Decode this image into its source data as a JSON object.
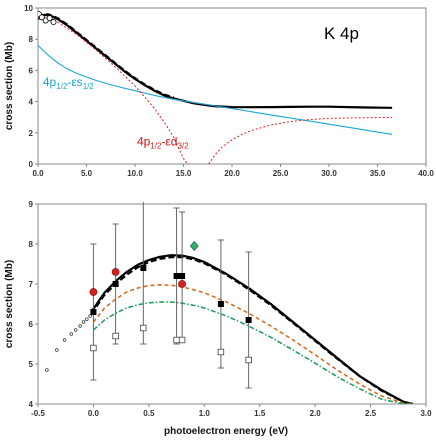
{
  "chart_data": [
    {
      "type": "line",
      "title": "K 4p",
      "xlabel": "",
      "ylabel": "cross section  (Mb)",
      "xlim": [
        0,
        40
      ],
      "ylim": [
        0,
        10
      ],
      "xticks": [
        "0.0",
        "5.0",
        "10.0",
        "15.0",
        "20.0",
        "25.0",
        "30.0",
        "35.0",
        "40.0"
      ],
      "yticks": [
        {
          "value": 10,
          "label": "10"
        },
        {
          "value": 8,
          "label": "8"
        },
        {
          "value": 6,
          "label": "6"
        },
        {
          "value": 4,
          "label": "4"
        },
        {
          "value": 2,
          "label": "2"
        },
        {
          "value": 0,
          "label": "0"
        }
      ],
      "annotations": [
        {
          "main": "4p",
          "sub1": "1/2",
          "mid": "-εs",
          "sub2": "1/2",
          "color": "#1aa6d6",
          "x": 0.5,
          "y": 5.0
        },
        {
          "main": "4p",
          "sub1": "1/2",
          "mid": "-εd",
          "sub2": "3/2",
          "color": "#d01818",
          "x": 10.2,
          "y": 1.2
        }
      ],
      "series": [
        {
          "style": "solid-black",
          "x": [
            0,
            0.5,
            1,
            1.5,
            2,
            3,
            4,
            5,
            6,
            7,
            8,
            9,
            10,
            11,
            12,
            13,
            14,
            15,
            16,
            17,
            18,
            19,
            20,
            22,
            24,
            26,
            28,
            30,
            32,
            34,
            36.5
          ],
          "y": [
            9.5,
            9.55,
            9.55,
            9.45,
            9.3,
            8.9,
            8.4,
            7.9,
            7.4,
            6.9,
            6.4,
            5.9,
            5.45,
            5.05,
            4.7,
            4.4,
            4.2,
            4.05,
            3.9,
            3.8,
            3.72,
            3.68,
            3.65,
            3.64,
            3.65,
            3.66,
            3.67,
            3.67,
            3.65,
            3.62,
            3.6
          ]
        },
        {
          "style": "dashed-black",
          "x": [
            0,
            0.5,
            1,
            1.5,
            2,
            3,
            4,
            5,
            6,
            7,
            8,
            9,
            10,
            11,
            12,
            13,
            14
          ],
          "y": [
            9.3,
            9.5,
            9.6,
            9.5,
            9.35,
            8.95,
            8.45,
            7.95,
            7.45,
            6.95,
            6.45,
            5.95,
            5.5,
            5.1,
            4.75,
            4.45,
            4.25
          ]
        },
        {
          "style": "blue",
          "x": [
            0,
            1,
            2,
            3,
            4,
            6,
            8,
            10,
            12,
            14,
            16,
            18,
            20,
            24,
            28,
            32,
            36.5
          ],
          "y": [
            7.6,
            7.0,
            6.5,
            6.1,
            5.8,
            5.35,
            5.0,
            4.7,
            4.4,
            4.15,
            3.95,
            3.75,
            3.55,
            3.15,
            2.75,
            2.35,
            1.9
          ]
        },
        {
          "style": "red-dotted",
          "x": [
            0,
            2,
            4,
            6,
            8,
            10,
            11,
            12,
            13,
            14,
            14.5,
            15,
            15.4
          ],
          "y": [
            9.4,
            9.1,
            8.3,
            7.3,
            6.2,
            5.0,
            4.3,
            3.55,
            2.7,
            1.7,
            1.0,
            0.35,
            0
          ]
        },
        {
          "style": "red-dotted",
          "x": [
            17.6,
            18.2,
            19,
            20,
            21,
            22,
            24,
            26,
            28,
            30,
            32,
            34,
            36.5
          ],
          "y": [
            0,
            0.55,
            1.1,
            1.55,
            1.9,
            2.15,
            2.5,
            2.72,
            2.85,
            2.92,
            2.95,
            2.97,
            2.98
          ]
        }
      ],
      "points": [
        {
          "x": 0.1,
          "y": 9.6
        },
        {
          "x": 0.4,
          "y": 9.4
        },
        {
          "x": 0.8,
          "y": 9.2
        },
        {
          "x": 1.2,
          "y": 9.35
        },
        {
          "x": 1.6,
          "y": 9.1
        }
      ]
    },
    {
      "type": "line",
      "title": "",
      "xlabel": "photoelectron energy (eV)",
      "ylabel": "cross section  (Mb)",
      "xlim": [
        -0.5,
        3.0
      ],
      "ylim": [
        4,
        9
      ],
      "xticks": [
        "-0.5",
        "0.0",
        "0.5",
        "1.0",
        "1.5",
        "2.0",
        "2.5",
        "3.0"
      ],
      "yticks": [
        {
          "value": 4,
          "label": "4"
        },
        {
          "value": 5,
          "label": "5"
        },
        {
          "value": 6,
          "label": "6"
        },
        {
          "value": 7,
          "label": "7"
        },
        {
          "value": 8,
          "label": "8"
        },
        {
          "value": 9,
          "label": "9"
        }
      ],
      "series": [
        {
          "style": "solid-black",
          "x": [
            -0.02,
            0.1,
            0.2,
            0.3,
            0.4,
            0.5,
            0.6,
            0.7,
            0.8,
            0.9,
            1.0,
            1.2,
            1.4,
            1.6,
            1.8,
            2.0,
            2.2,
            2.4,
            2.6,
            2.8,
            2.88
          ],
          "y": [
            6.3,
            6.78,
            7.07,
            7.3,
            7.48,
            7.6,
            7.68,
            7.72,
            7.71,
            7.65,
            7.55,
            7.25,
            6.9,
            6.5,
            6.05,
            5.6,
            5.15,
            4.7,
            4.35,
            4.05,
            4.0
          ]
        },
        {
          "style": "dashed-black",
          "x": [
            -0.02,
            0.1,
            0.2,
            0.3,
            0.4,
            0.5,
            0.6,
            0.7,
            0.8,
            0.9,
            1.0,
            1.2,
            1.4,
            1.6,
            1.8,
            2.0,
            2.2,
            2.4,
            2.6,
            2.8,
            2.88
          ],
          "y": [
            6.25,
            6.73,
            7.0,
            7.23,
            7.42,
            7.55,
            7.63,
            7.67,
            7.67,
            7.62,
            7.52,
            7.23,
            6.87,
            6.47,
            6.03,
            5.58,
            5.13,
            4.7,
            4.33,
            4.05,
            4.0
          ]
        },
        {
          "style": "orange-dashed",
          "x": [
            0.0,
            0.1,
            0.2,
            0.3,
            0.4,
            0.5,
            0.6,
            0.7,
            0.8,
            0.9,
            1.0,
            1.2,
            1.4,
            1.6,
            1.8,
            2.0,
            2.2,
            2.4,
            2.6,
            2.8,
            2.88
          ],
          "y": [
            6.05,
            6.4,
            6.62,
            6.8,
            6.9,
            6.96,
            6.98,
            6.97,
            6.93,
            6.86,
            6.78,
            6.55,
            6.27,
            5.95,
            5.6,
            5.23,
            4.85,
            4.5,
            4.2,
            4.02,
            4.0
          ]
        },
        {
          "style": "green-dashdot",
          "x": [
            0.0,
            0.1,
            0.2,
            0.3,
            0.4,
            0.5,
            0.6,
            0.7,
            0.8,
            0.9,
            1.0,
            1.2,
            1.4,
            1.6,
            1.8,
            2.0,
            2.2,
            2.4,
            2.6,
            2.8,
            2.88
          ],
          "y": [
            5.85,
            6.1,
            6.27,
            6.4,
            6.48,
            6.53,
            6.55,
            6.55,
            6.52,
            6.47,
            6.4,
            6.2,
            5.95,
            5.67,
            5.35,
            5.02,
            4.68,
            4.38,
            4.12,
            4.0,
            4.0
          ]
        }
      ],
      "open_circles": [
        {
          "x": -0.42,
          "y": 4.85
        },
        {
          "x": -0.33,
          "y": 5.35
        },
        {
          "x": -0.26,
          "y": 5.6
        },
        {
          "x": -0.2,
          "y": 5.75
        },
        {
          "x": -0.16,
          "y": 5.85
        },
        {
          "x": -0.12,
          "y": 5.95
        },
        {
          "x": -0.09,
          "y": 6.05
        },
        {
          "x": -0.06,
          "y": 6.12
        },
        {
          "x": -0.03,
          "y": 6.2
        }
      ],
      "filled_squares": [
        {
          "x": 0.0,
          "y": 6.3,
          "err": 1.7
        },
        {
          "x": 0.2,
          "y": 7.0,
          "err": 1.5
        },
        {
          "x": 0.45,
          "y": 7.4,
          "err": 1.9
        },
        {
          "x": 0.75,
          "y": 7.2,
          "err": 1.7
        },
        {
          "x": 0.8,
          "y": 7.2,
          "err": 1.6
        },
        {
          "x": 1.15,
          "y": 6.5,
          "err": 1.6
        },
        {
          "x": 1.4,
          "y": 6.1,
          "err": 1.7
        }
      ],
      "open_squares": [
        {
          "x": 0.0,
          "y": 5.4
        },
        {
          "x": 0.2,
          "y": 5.7
        },
        {
          "x": 0.45,
          "y": 5.9
        },
        {
          "x": 0.75,
          "y": 5.6
        },
        {
          "x": 0.8,
          "y": 5.6
        },
        {
          "x": 1.15,
          "y": 5.3
        },
        {
          "x": 1.4,
          "y": 5.1
        }
      ],
      "red_circles": [
        {
          "x": 0.0,
          "y": 6.8
        },
        {
          "x": 0.2,
          "y": 7.3
        },
        {
          "x": 0.8,
          "y": 7.0
        }
      ],
      "green_diamonds": [
        {
          "x": 0.91,
          "y": 7.95
        }
      ]
    }
  ]
}
